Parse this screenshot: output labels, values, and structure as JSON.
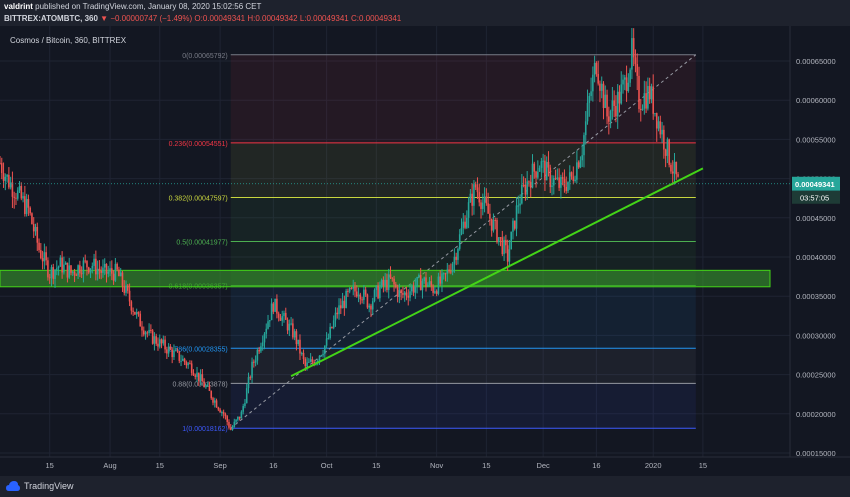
{
  "header": {
    "publisher": "valdrint",
    "published_text": "published on TradingView.com, January 08, 2020 15:02:56 CET",
    "symbol": "BITTREX:ATOMBTC, 360",
    "change": "▼ −0.00000747 (−1.49%)",
    "ohlc": "O:0.00049341 H:0.00049342 L:0.00049341 C:0.00049341"
  },
  "footer": {
    "brand": "TradingView"
  },
  "colors": {
    "up": "#26a69a",
    "down": "#ef5350",
    "trendline": "#43d417",
    "background": "#131722",
    "zone": "#3ca52d",
    "price_tag": "#26a69a"
  },
  "chart_data": {
    "type": "line",
    "title": "Cosmos / Bitcoin, 360, BITTREX",
    "xlabel": "",
    "ylabel": "",
    "x_ticks": [
      "15",
      "Aug",
      "15",
      "Sep",
      "16",
      "Oct",
      "15",
      "Nov",
      "15",
      "Dec",
      "16",
      "2020",
      "15"
    ],
    "y_ticks": [
      "0.00065000",
      "0.00060000",
      "0.00055000",
      "0.00050000",
      "0.00045000",
      "0.00040000",
      "0.00035000",
      "0.00030000",
      "0.00025000",
      "0.00020000",
      "0.00015000"
    ],
    "ylim": [
      0.000142,
      0.00069
    ],
    "current_price": "0.00049341",
    "countdown": "03:57:05",
    "series": [
      {
        "name": "",
        "x": [
          "2019-07-01",
          "2019-07-03",
          "2019-07-06",
          "2019-07-09",
          "2019-07-12",
          "2019-07-15",
          "2019-07-18",
          "2019-07-21",
          "2019-07-24",
          "2019-07-27",
          "2019-07-30",
          "2019-08-03",
          "2019-08-06",
          "2019-08-09",
          "2019-08-12",
          "2019-08-15",
          "2019-08-18",
          "2019-08-21",
          "2019-08-24",
          "2019-08-27",
          "2019-08-30",
          "2019-09-02",
          "2019-09-04",
          "2019-09-07",
          "2019-09-10",
          "2019-09-13",
          "2019-09-16",
          "2019-09-19",
          "2019-09-22",
          "2019-09-25",
          "2019-09-28",
          "2019-10-01",
          "2019-10-04",
          "2019-10-07",
          "2019-10-10",
          "2019-10-13",
          "2019-10-16",
          "2019-10-19",
          "2019-10-22",
          "2019-10-25",
          "2019-10-28",
          "2019-10-31",
          "2019-11-03",
          "2019-11-06",
          "2019-11-09",
          "2019-11-12",
          "2019-11-15",
          "2019-11-18",
          "2019-11-21",
          "2019-11-24",
          "2019-11-27",
          "2019-11-30",
          "2019-12-03",
          "2019-12-06",
          "2019-12-09",
          "2019-12-12",
          "2019-12-14",
          "2019-12-16",
          "2019-12-19",
          "2019-12-22",
          "2019-12-24",
          "2019-12-26",
          "2019-12-28",
          "2019-12-31",
          "2020-01-02",
          "2020-01-04",
          "2020-01-06",
          "2020-01-08"
        ],
        "y": [
          0.00052,
          0.0005,
          0.00048,
          0.00046,
          0.00041,
          0.00038,
          0.00039,
          0.00038,
          0.00039,
          0.00039,
          0.00038,
          0.00038,
          0.00035,
          0.00032,
          0.0003,
          0.00029,
          0.00028,
          0.00027,
          0.00026,
          0.00024,
          0.00022,
          0.0002,
          0.00018,
          0.0002,
          0.00026,
          0.0003,
          0.00034,
          0.00032,
          0.0003,
          0.00026,
          0.00027,
          0.00029,
          0.00033,
          0.00035,
          0.00036,
          0.00034,
          0.00036,
          0.00037,
          0.00035,
          0.00036,
          0.00037,
          0.00036,
          0.00037,
          0.0004,
          0.00045,
          0.00049,
          0.00046,
          0.00043,
          0.0004,
          0.00047,
          0.0005,
          0.00052,
          0.0005,
          0.00049,
          0.0005,
          0.00054,
          0.0006,
          0.00065,
          0.00058,
          0.0006,
          0.00062,
          0.00066,
          0.0006,
          0.00061,
          0.00058,
          0.00055,
          0.00052,
          0.000493
        ]
      }
    ],
    "fibonacci": {
      "levels": [
        {
          "label": "0(0.00065792)",
          "value": 0.00065792,
          "color": "#787b86"
        },
        {
          "label": "0.236(0.00054551)",
          "value": 0.00054551,
          "color": "#f23645"
        },
        {
          "label": "0.382(0.00047597)",
          "value": 0.00047597,
          "color": "#c9d63e"
        },
        {
          "label": "0.5(0.00041977)",
          "value": 0.00041977,
          "color": "#4caf50"
        },
        {
          "label": "0.618(0.00036357)",
          "value": 0.00036357,
          "color": "#3ca52d"
        },
        {
          "label": "0.786(0.00028355)",
          "value": 0.00028355,
          "color": "#2196f3"
        },
        {
          "label": "0.88(0.00023878)",
          "value": 0.00023878,
          "color": "#9598a1"
        },
        {
          "label": "1(0.00018162)",
          "value": 0.00018162,
          "color": "#3d5afe"
        }
      ],
      "start": {
        "x": "2019-09-04",
        "y": 0.00018162
      },
      "end": {
        "x": "2020-01-13",
        "y": 0.00065792
      }
    },
    "trendline": {
      "start": {
        "x": "2019-09-21",
        "y": 0.000248
      },
      "end": {
        "x": "2020-01-15",
        "y": 0.000513
      }
    },
    "zone": {
      "y_low": 0.000362,
      "y_high": 0.000383
    }
  }
}
